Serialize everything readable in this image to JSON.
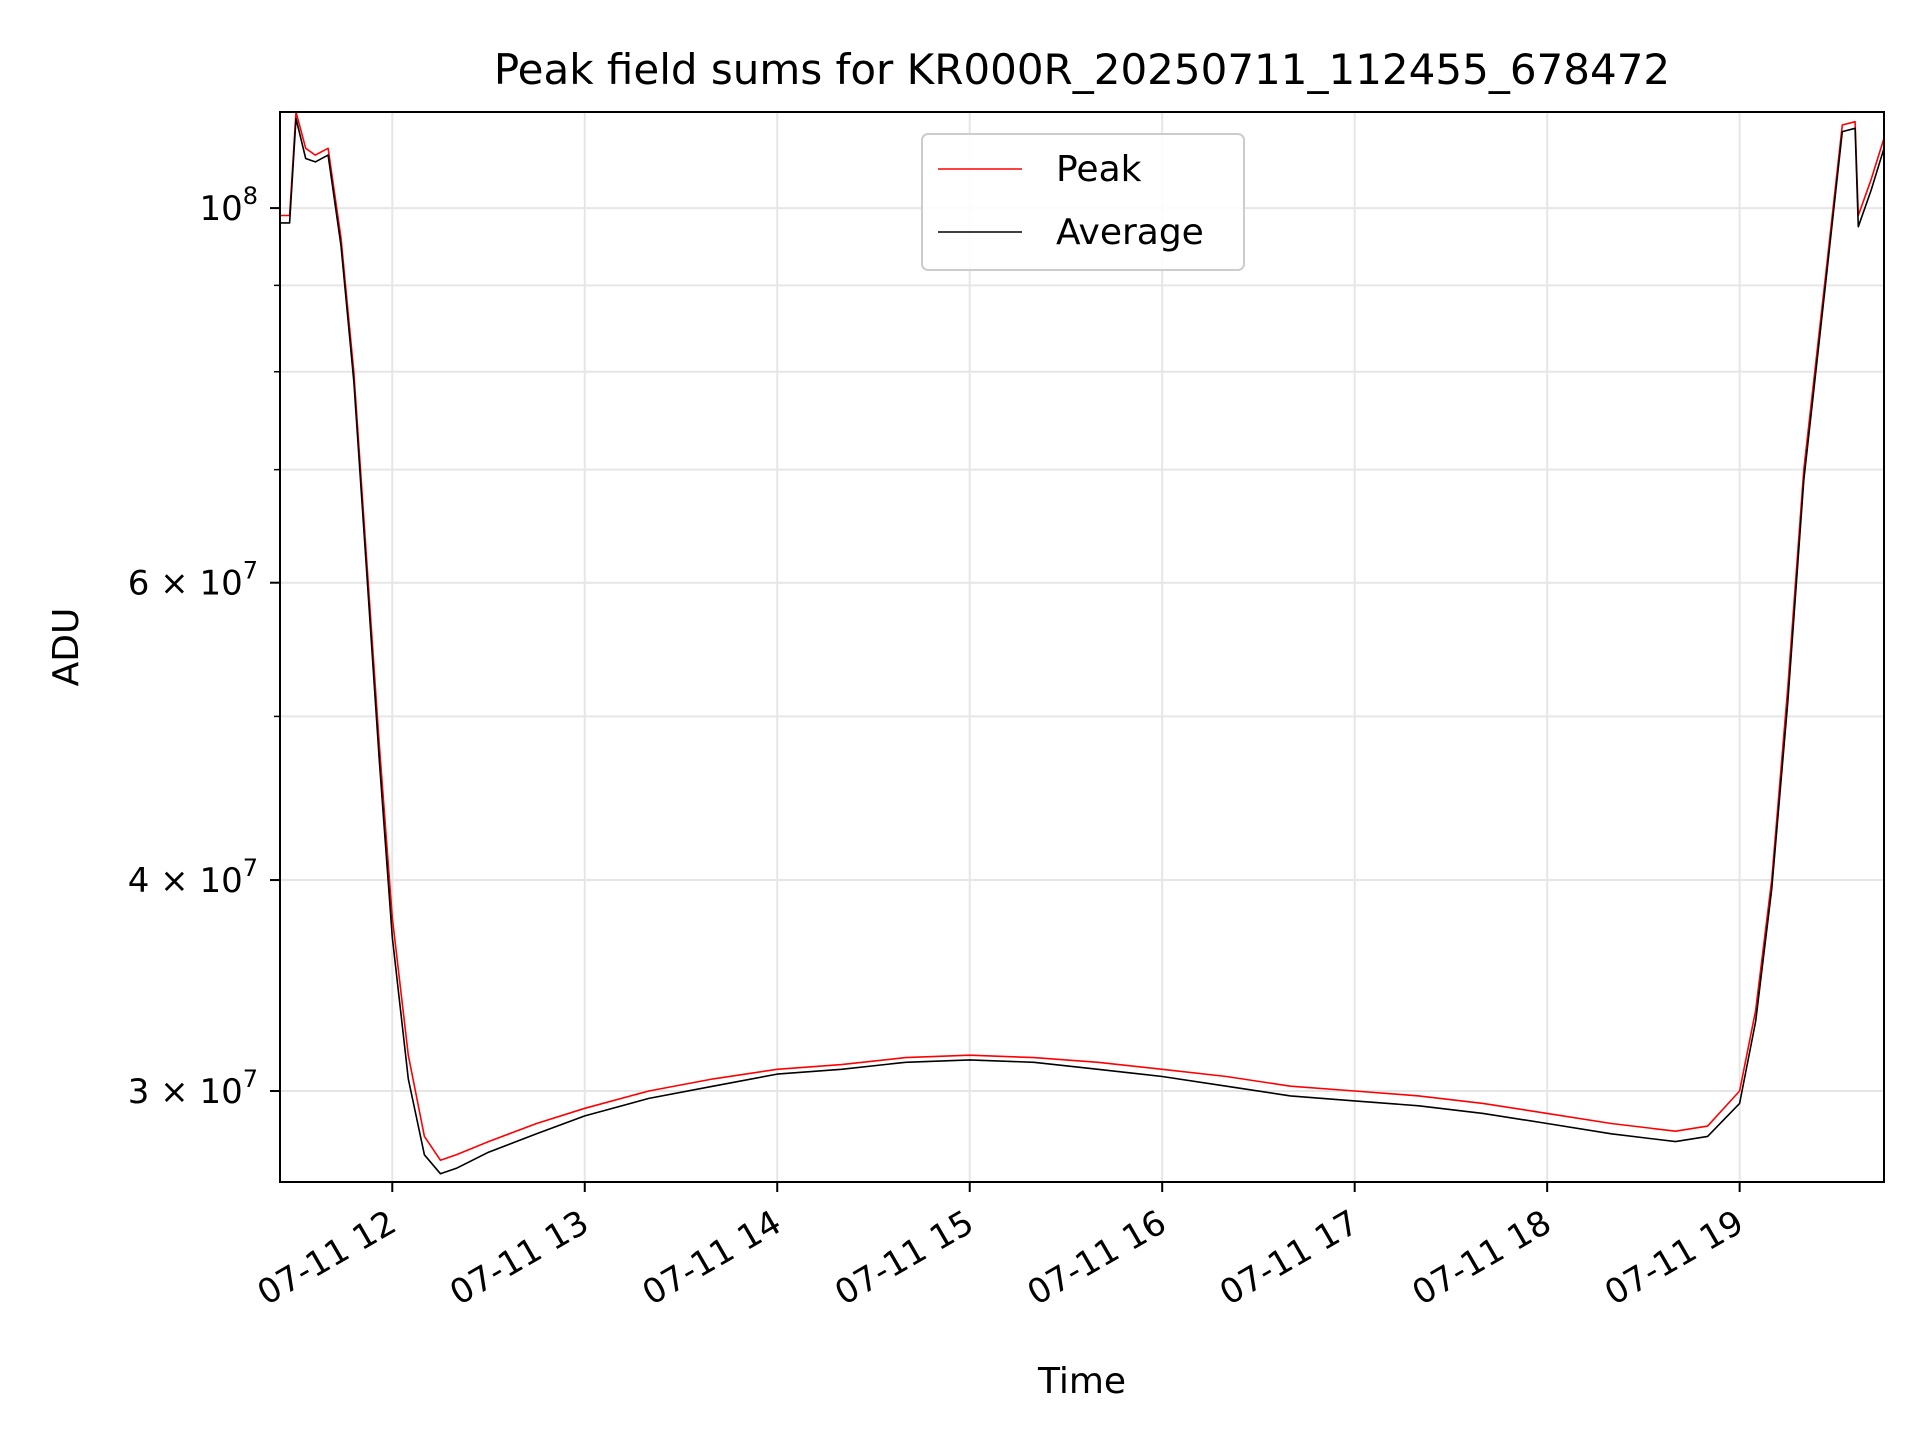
{
  "chart_data": {
    "type": "line",
    "title": "Peak field sums for KR000R_20250711_112455_678472",
    "xlabel": "Time",
    "ylabel": "ADU",
    "y_scale": "log",
    "xlim": [
      "2025-07-11 11:25",
      "2025-07-11 19:45"
    ],
    "ylim": [
      26500000,
      114000000
    ],
    "grid": true,
    "legend_position": "top-center",
    "x_ticks": [
      {
        "time": "2025-07-11 12:00",
        "label": "07-11 12"
      },
      {
        "time": "2025-07-11 13:00",
        "label": "07-11 13"
      },
      {
        "time": "2025-07-11 14:00",
        "label": "07-11 14"
      },
      {
        "time": "2025-07-11 15:00",
        "label": "07-11 15"
      },
      {
        "time": "2025-07-11 16:00",
        "label": "07-11 16"
      },
      {
        "time": "2025-07-11 17:00",
        "label": "07-11 17"
      },
      {
        "time": "2025-07-11 18:00",
        "label": "07-11 18"
      },
      {
        "time": "2025-07-11 19:00",
        "label": "07-11 19"
      }
    ],
    "y_ticks": [
      {
        "value": 30000000,
        "mantissa": "3",
        "exponent": "7"
      },
      {
        "value": 40000000,
        "mantissa": "4",
        "exponent": "7"
      },
      {
        "value": 60000000,
        "mantissa": "6",
        "exponent": "7"
      },
      {
        "value": 100000000,
        "mantissa": "",
        "exponent": "8"
      }
    ],
    "y_minor_ticks": [
      50000000,
      70000000,
      80000000,
      90000000
    ],
    "series": [
      {
        "name": "Peak",
        "color": "#ff0000",
        "x": [
          "2025-07-11 11:25",
          "2025-07-11 11:28",
          "2025-07-11 11:30",
          "2025-07-11 11:33",
          "2025-07-11 11:36",
          "2025-07-11 11:40",
          "2025-07-11 11:44",
          "2025-07-11 11:48",
          "2025-07-11 11:52",
          "2025-07-11 11:56",
          "2025-07-11 12:00",
          "2025-07-11 12:05",
          "2025-07-11 12:10",
          "2025-07-11 12:15",
          "2025-07-11 12:20",
          "2025-07-11 12:30",
          "2025-07-11 12:45",
          "2025-07-11 13:00",
          "2025-07-11 13:20",
          "2025-07-11 13:40",
          "2025-07-11 14:00",
          "2025-07-11 14:20",
          "2025-07-11 14:40",
          "2025-07-11 15:00",
          "2025-07-11 15:20",
          "2025-07-11 15:40",
          "2025-07-11 16:00",
          "2025-07-11 16:20",
          "2025-07-11 16:40",
          "2025-07-11 17:00",
          "2025-07-11 17:20",
          "2025-07-11 17:40",
          "2025-07-11 18:00",
          "2025-07-11 18:20",
          "2025-07-11 18:40",
          "2025-07-11 18:50",
          "2025-07-11 19:00",
          "2025-07-11 19:05",
          "2025-07-11 19:10",
          "2025-07-11 19:15",
          "2025-07-11 19:20",
          "2025-07-11 19:27",
          "2025-07-11 19:32",
          "2025-07-11 19:36",
          "2025-07-11 19:37",
          "2025-07-11 19:41",
          "2025-07-11 19:45"
        ],
        "values": [
          99000000,
          99000000,
          114000000,
          108500000,
          107500000,
          108500000,
          96000000,
          80000000,
          62000000,
          48000000,
          38000000,
          31500000,
          28200000,
          27300000,
          27500000,
          28000000,
          28700000,
          29300000,
          30000000,
          30500000,
          30900000,
          31100000,
          31400000,
          31500000,
          31400000,
          31200000,
          30900000,
          30600000,
          30200000,
          30000000,
          29800000,
          29500000,
          29100000,
          28700000,
          28400000,
          28600000,
          30000000,
          33500000,
          40000000,
          52000000,
          70000000,
          92000000,
          112000000,
          112500000,
          99000000,
          104000000,
          110000000
        ]
      },
      {
        "name": "Average",
        "color": "#000000",
        "x": [
          "2025-07-11 11:25",
          "2025-07-11 11:28",
          "2025-07-11 11:30",
          "2025-07-11 11:33",
          "2025-07-11 11:36",
          "2025-07-11 11:40",
          "2025-07-11 11:44",
          "2025-07-11 11:48",
          "2025-07-11 11:52",
          "2025-07-11 11:56",
          "2025-07-11 12:00",
          "2025-07-11 12:05",
          "2025-07-11 12:10",
          "2025-07-11 12:15",
          "2025-07-11 12:20",
          "2025-07-11 12:30",
          "2025-07-11 12:45",
          "2025-07-11 13:00",
          "2025-07-11 13:20",
          "2025-07-11 13:40",
          "2025-07-11 14:00",
          "2025-07-11 14:20",
          "2025-07-11 14:40",
          "2025-07-11 15:00",
          "2025-07-11 15:20",
          "2025-07-11 15:40",
          "2025-07-11 16:00",
          "2025-07-11 16:20",
          "2025-07-11 16:40",
          "2025-07-11 17:00",
          "2025-07-11 17:20",
          "2025-07-11 17:40",
          "2025-07-11 18:00",
          "2025-07-11 18:20",
          "2025-07-11 18:40",
          "2025-07-11 18:50",
          "2025-07-11 19:00",
          "2025-07-11 19:05",
          "2025-07-11 19:10",
          "2025-07-11 19:15",
          "2025-07-11 19:20",
          "2025-07-11 19:27",
          "2025-07-11 19:32",
          "2025-07-11 19:36",
          "2025-07-11 19:37",
          "2025-07-11 19:41",
          "2025-07-11 19:45"
        ],
        "values": [
          98000000,
          98000000,
          113000000,
          107000000,
          106500000,
          107500000,
          95000000,
          79000000,
          61000000,
          47000000,
          37000000,
          30500000,
          27500000,
          26800000,
          27000000,
          27600000,
          28300000,
          29000000,
          29700000,
          30200000,
          30700000,
          30900000,
          31200000,
          31300000,
          31200000,
          30900000,
          30600000,
          30200000,
          29800000,
          29600000,
          29400000,
          29100000,
          28700000,
          28300000,
          28000000,
          28200000,
          29500000,
          33000000,
          39500000,
          51000000,
          69000000,
          91000000,
          111000000,
          111500000,
          97500000,
          102500000,
          108500000
        ]
      }
    ]
  }
}
